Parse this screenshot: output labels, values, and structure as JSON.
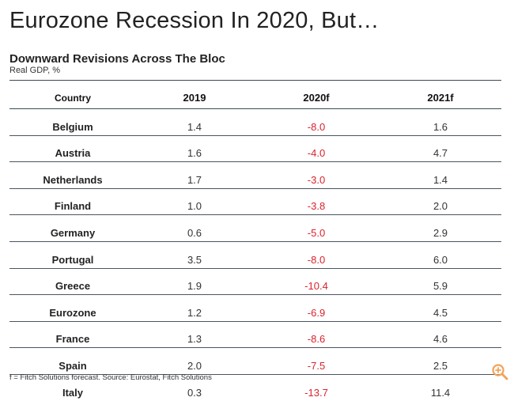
{
  "page_title": "Eurozone Recession In 2020, But…",
  "chart_data": {
    "type": "table",
    "title": "Downward Revisions Across The Bloc",
    "subtitle": "Real GDP, %",
    "columns": [
      "Country",
      "2019",
      "2020f",
      "2021f"
    ],
    "rows": [
      {
        "country": "Belgium",
        "v2019": "1.4",
        "v2020f": "-8.0",
        "v2021f": "1.6"
      },
      {
        "country": "Austria",
        "v2019": "1.6",
        "v2020f": "-4.0",
        "v2021f": "4.7"
      },
      {
        "country": "Netherlands",
        "v2019": "1.7",
        "v2020f": "-3.0",
        "v2021f": "1.4"
      },
      {
        "country": "Finland",
        "v2019": "1.0",
        "v2020f": "-3.8",
        "v2021f": "2.0"
      },
      {
        "country": "Germany",
        "v2019": "0.6",
        "v2020f": "-5.0",
        "v2021f": "2.9"
      },
      {
        "country": "Portugal",
        "v2019": "3.5",
        "v2020f": "-8.0",
        "v2021f": "6.0"
      },
      {
        "country": "Greece",
        "v2019": "1.9",
        "v2020f": "-10.4",
        "v2021f": "5.9"
      },
      {
        "country": "Eurozone",
        "v2019": "1.2",
        "v2020f": "-6.9",
        "v2021f": "4.5"
      },
      {
        "country": "France",
        "v2019": "1.3",
        "v2020f": "-8.6",
        "v2021f": "4.6"
      },
      {
        "country": "Spain",
        "v2019": "2.0",
        "v2020f": "-7.5",
        "v2021f": "2.5"
      },
      {
        "country": "Italy",
        "v2019": "0.3",
        "v2020f": "-13.7",
        "v2021f": "11.4"
      }
    ],
    "footnote": "f = Fitch Solutions forecast. Source: Eurostat, Fitch Solutions"
  },
  "colors": {
    "negative": "#d9232d",
    "text": "#333333",
    "rule": "#3b4a55",
    "zoom_icon": "#f0a35a"
  },
  "icons": {
    "zoom": "zoom-in-icon"
  }
}
